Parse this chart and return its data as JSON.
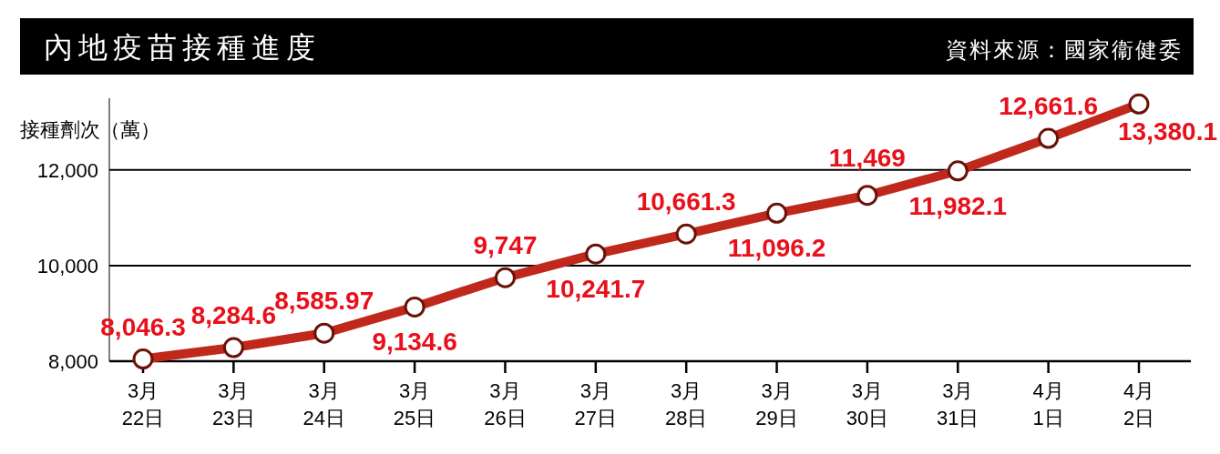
{
  "chart_data": {
    "type": "line",
    "title": "內地疫苗接種進度",
    "ylabel": "接種劑次（萬）",
    "annotations": [
      "資料來源：國家衞健委"
    ],
    "categories": [
      "3月\n22日",
      "3月\n23日",
      "3月\n24日",
      "3月\n25日",
      "3月\n26日",
      "3月\n27日",
      "3月\n28日",
      "3月\n29日",
      "3月\n30日",
      "3月\n31日",
      "4月\n1日",
      "4月\n2日"
    ],
    "values": [
      8046.3,
      8284.6,
      8585.97,
      9134.6,
      9747,
      10241.7,
      10661.3,
      11096.2,
      11469,
      11982.1,
      12661.6,
      13380.1
    ],
    "value_labels": [
      "8,046.3",
      "8,284.6",
      "8,585.97",
      "9,134.6",
      "9,747",
      "10,241.7",
      "10,661.3",
      "11,096.2",
      "11,469",
      "11,982.1",
      "12,661.6",
      "13,380.1"
    ],
    "color": "#c0281c",
    "marker": "circle",
    "grid": "y",
    "ylim": [
      8000,
      13500
    ],
    "yticks": [
      {
        "value": 8000,
        "label": "8,000"
      },
      {
        "value": 10000,
        "label": "10,000"
      },
      {
        "value": 12000,
        "label": "12,000"
      }
    ]
  }
}
